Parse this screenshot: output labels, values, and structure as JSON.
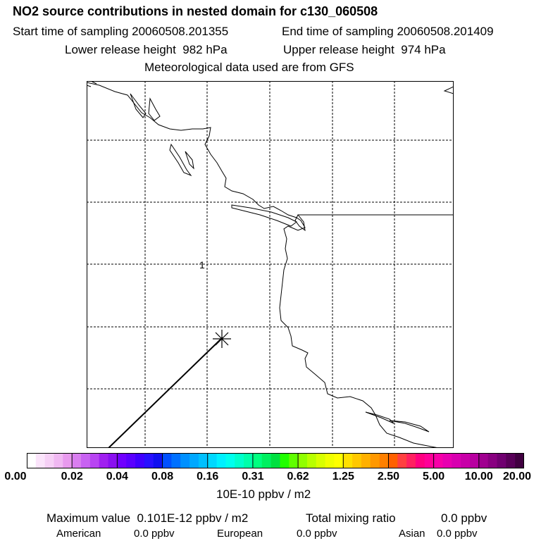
{
  "header": {
    "title": "NO2 source contributions in nested domain for c130_060508",
    "start_label": "Start time of sampling 20060508.201355",
    "end_label": "End time of sampling 20060508.201409",
    "lower_label": "Lower release height  982 hPa",
    "upper_label": "Upper release height  974 hPa",
    "met_label": "Meteorological data used are from GFS"
  },
  "map": {
    "contour_label": "1",
    "marker": "release-point-star",
    "colors": {
      "coastline": "#000000",
      "gridline": "#000000",
      "flight-track": "#000000"
    }
  },
  "colorbar": {
    "units": "10E-10 ppbv / m2",
    "ticks": [
      "0.00",
      "0.02",
      "0.04",
      "0.08",
      "0.16",
      "0.31",
      "0.62",
      "1.25",
      "2.50",
      "5.00",
      "10.00",
      "20.00"
    ],
    "colors": [
      "#ffffff",
      "#fbe4fb",
      "#f6d0f6",
      "#f0b8f2",
      "#e89aee",
      "#d97ef0",
      "#c862f2",
      "#b844f2",
      "#a020f0",
      "#8a10f0",
      "#7000ff",
      "#5a00ff",
      "#4000ff",
      "#2810ff",
      "#1010f0",
      "#0050ff",
      "#0070ff",
      "#0090ff",
      "#00a8ff",
      "#00c0ff",
      "#00d8ff",
      "#00f0ff",
      "#00ffee",
      "#00ffcc",
      "#00ffaa",
      "#00ff80",
      "#00f060",
      "#00e040",
      "#20ff00",
      "#60ff00",
      "#90ff00",
      "#b8ff00",
      "#d8ff00",
      "#f0ff00",
      "#ffff00",
      "#ffe000",
      "#ffc800",
      "#ffb000",
      "#ff9800",
      "#ff8000",
      "#ff6000",
      "#ff4040",
      "#ff2060",
      "#ff0080",
      "#ff0098",
      "#f800a8",
      "#e800b0",
      "#d800b0",
      "#c800a8",
      "#b800a0",
      "#a00090",
      "#880080",
      "#700070",
      "#580058",
      "#400040"
    ]
  },
  "footer": {
    "max_label": "Maximum value  0.101E-12 ppbv / m2",
    "total_label": "Total mixing ratio",
    "total_value": "0.0 ppbv",
    "american_label": "American",
    "american_value": "0.0 ppbv",
    "european_label": "European",
    "european_value": "0.0 ppbv",
    "asian_label": "Asian",
    "asian_value": "0.0 ppbv"
  }
}
